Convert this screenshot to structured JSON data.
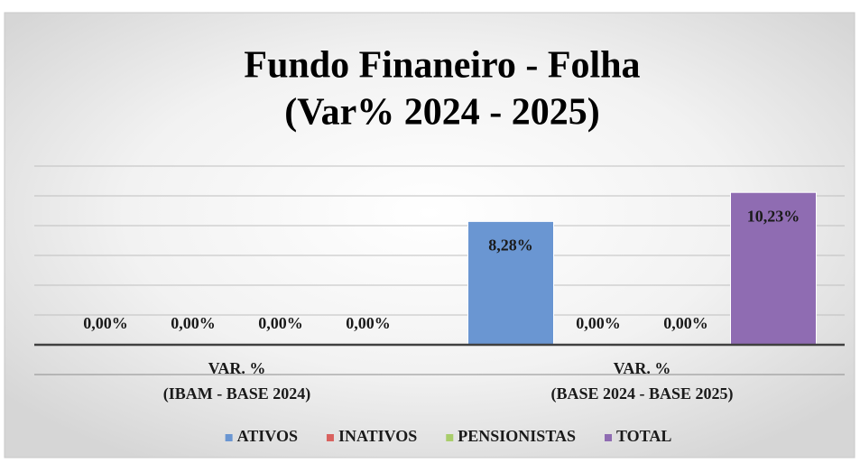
{
  "chart_data": {
    "type": "bar",
    "title": "Fundo Finaneiro - Folha",
    "subtitle": "(Var% 2024 - 2025)",
    "categories": [
      [
        "VAR. %",
        "(IBAM - BASE 2024)"
      ],
      [
        "VAR. %",
        "(BASE 2024 - BASE 2025)"
      ]
    ],
    "series": [
      {
        "name": "ATIVOS",
        "color": "#6a96d2",
        "values": [
          0,
          8.28
        ],
        "value_labels": [
          "0,00%",
          "8,28%"
        ]
      },
      {
        "name": "INATIVOS",
        "color": "#d9625f",
        "values": [
          0,
          0
        ],
        "value_labels": [
          "0,00%",
          "0,00%"
        ]
      },
      {
        "name": "PENSIONISTAS",
        "color": "#a9cd6b",
        "values": [
          0,
          0
        ],
        "value_labels": [
          "0,00%",
          "0,00%"
        ]
      },
      {
        "name": "TOTAL",
        "color": "#8f6cb2",
        "values": [
          0,
          10.23
        ],
        "value_labels": [
          "0,00%",
          "10,23%"
        ]
      }
    ],
    "ylim": [
      0,
      12
    ],
    "yticks": [
      0,
      2,
      4,
      6,
      8,
      10,
      12
    ],
    "grid": true,
    "legend": "bottom"
  }
}
